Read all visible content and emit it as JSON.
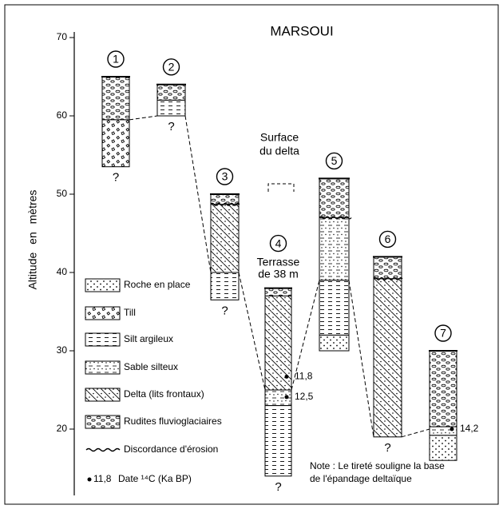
{
  "title": "MARSOUI",
  "y_axis": {
    "label": "Altitude en mètres",
    "yticks": [
      20,
      30,
      40,
      50,
      60,
      70
    ]
  },
  "columns": [
    {
      "label": "1",
      "question": "?",
      "delta_base": 59.5,
      "layers": [
        {
          "type": "Rudites fluvioglaciaires",
          "top": 65,
          "bottom": 59.5
        },
        {
          "type": "Till",
          "top": 59.5,
          "bottom": 53.5
        }
      ]
    },
    {
      "label": "2",
      "question": "?",
      "delta_base": 60,
      "layers": [
        {
          "type": "Rudites fluvioglaciaires",
          "top": 64,
          "bottom": 62
        },
        {
          "type": "Silt argileux",
          "top": 62,
          "bottom": 60
        }
      ]
    },
    {
      "label": "3",
      "question": "?",
      "delta_base": 40,
      "discordance": 48.7,
      "layers": [
        {
          "type": "Rudites fluvioglaciaires",
          "top": 50,
          "bottom": 48.7
        },
        {
          "type": "Delta (lits frontaux)",
          "top": 48.7,
          "bottom": 40
        },
        {
          "type": "Silt argileux",
          "top": 40,
          "bottom": 36.5
        }
      ]
    },
    {
      "label": "4",
      "question": "?",
      "delta_base": 25,
      "caption": [
        "Terrasse",
        "de 38 m"
      ],
      "layers": [
        {
          "type": "Rudites fluvioglaciaires",
          "top": 38,
          "bottom": 37
        },
        {
          "type": "Delta (lits frontaux)",
          "top": 37,
          "bottom": 25
        },
        {
          "type": "Sable silteux",
          "top": 25,
          "bottom": 23
        },
        {
          "type": "Silt argileux",
          "top": 23,
          "bottom": 14
        }
      ],
      "dates": [
        {
          "label": "11,8",
          "altitude": 26.7
        },
        {
          "label": "12,5",
          "altitude": 24.1
        }
      ]
    },
    {
      "label": "5",
      "delta_base": 39,
      "discordance": 47,
      "layers": [
        {
          "type": "Rudites fluvioglaciaires",
          "top": 52,
          "bottom": 47
        },
        {
          "type": "Sable silteux",
          "top": 47,
          "bottom": 39
        },
        {
          "type": "Silt argileux",
          "top": 39,
          "bottom": 32
        },
        {
          "type": "Roche en place",
          "top": 32,
          "bottom": 30
        }
      ]
    },
    {
      "label": "6",
      "question": "?",
      "delta_base": 19,
      "discordance": 39.2,
      "layers": [
        {
          "type": "Rudites fluvioglaciaires",
          "top": 42,
          "bottom": 39.2
        },
        {
          "type": "Delta (lits frontaux)",
          "top": 39.2,
          "bottom": 19
        }
      ]
    },
    {
      "label": "7",
      "delta_base": 20,
      "layers": [
        {
          "type": "Rudites fluvioglaciaires",
          "top": 30,
          "bottom": 20.3
        },
        {
          "type": "Sable silteux",
          "top": 20.3,
          "bottom": 19.2
        },
        {
          "type": "Roche en place",
          "top": 19.2,
          "bottom": 16
        }
      ],
      "dates": [
        {
          "label": "14,2",
          "altitude": 20
        }
      ]
    }
  ],
  "surface_label": [
    "Surface",
    "du delta"
  ],
  "legend": [
    "Roche en place",
    "Till",
    "Silt argileux",
    "Sable silteux",
    "Delta (lits frontaux)",
    "Rudites fluvioglaciaires"
  ],
  "discordance_label": "Discordance d'érosion",
  "date_legend": {
    "example": "11,8",
    "label": "Date ¹⁴C (Ka BP)"
  },
  "note": [
    "Note : Le tireté souligne la base",
    "de l'épandage deltaïque"
  ]
}
